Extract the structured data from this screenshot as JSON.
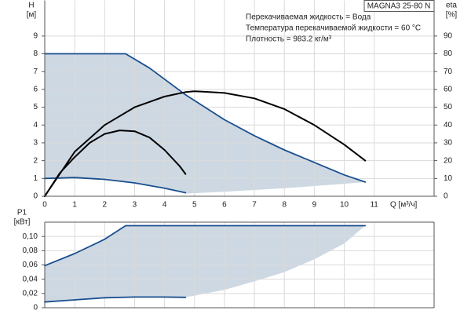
{
  "header": {
    "model": "MAGNA3 25-80 N",
    "notes": [
      "Перекачиваемая жидкость = Вода",
      "Температура перекачиваемой жидкости = 60 °C",
      "Плотность = 983.2 кг/м³"
    ]
  },
  "chart_data": [
    {
      "type": "line",
      "y_label": [
        "H",
        "[м]"
      ],
      "y2_label": [
        "eta",
        "[%]"
      ],
      "x_label": "Q [м³/ч]",
      "xlim": [
        0,
        13
      ],
      "xticks": [
        0,
        1,
        2,
        3,
        4,
        5,
        6,
        7,
        8,
        9,
        10,
        11
      ],
      "ylim": [
        0,
        11
      ],
      "yticks": [
        0,
        1,
        2,
        3,
        4,
        5,
        6,
        7,
        8,
        9
      ],
      "y2lim": [
        0,
        110
      ],
      "y2ticks": [
        0,
        10,
        20,
        30,
        40,
        50,
        60,
        70,
        80,
        90
      ],
      "grid": true,
      "area": {
        "color": "#cdd8e3",
        "x": [
          0,
          2.7,
          3.5,
          4.7,
          6,
          7,
          8,
          9,
          10,
          10.7,
          10,
          8,
          6,
          4.7,
          4,
          3,
          2,
          1,
          0
        ],
        "values": [
          8,
          8,
          7.2,
          5.7,
          4.3,
          3.4,
          2.6,
          1.9,
          1.2,
          0.8,
          0.7,
          0.45,
          0.25,
          0.15,
          0.45,
          0.75,
          0.95,
          1.05,
          1.0
        ]
      },
      "series": [
        {
          "color": "#1a4f8f",
          "x": [
            0,
            2.7,
            3.5,
            4.7,
            6,
            7,
            8,
            9,
            10,
            10.7
          ],
          "values": [
            8,
            8,
            7.2,
            5.7,
            4.3,
            3.4,
            2.6,
            1.9,
            1.2,
            0.8
          ]
        },
        {
          "color": "#1a4f8f",
          "x": [
            0,
            1,
            2,
            3,
            4,
            4.7
          ],
          "values": [
            1.0,
            1.05,
            0.95,
            0.75,
            0.45,
            0.2
          ]
        },
        {
          "color": "#000000",
          "axis": "y2",
          "x": [
            0,
            1,
            2,
            3,
            4,
            4.7,
            5,
            6,
            7,
            8,
            9,
            10,
            10.7
          ],
          "values": [
            0,
            25,
            40,
            50,
            56,
            58.5,
            59,
            58,
            55,
            49,
            40,
            29,
            20
          ]
        },
        {
          "color": "#000000",
          "axis": "y2",
          "x": [
            0,
            0.5,
            1,
            1.5,
            2,
            2.5,
            3,
            3.5,
            4,
            4.5,
            4.7
          ],
          "values": [
            0,
            13,
            22,
            30,
            35,
            37,
            36.5,
            33,
            26,
            17,
            12.5
          ]
        }
      ]
    },
    {
      "type": "line",
      "y_label": [
        "P1",
        "[кВт]"
      ],
      "xlim": [
        0,
        13
      ],
      "xticks": [
        0,
        1,
        2,
        3,
        4,
        5,
        6,
        7,
        8,
        9,
        10,
        11
      ],
      "ylim": [
        0,
        0.12
      ],
      "yticks": [
        0,
        {
          "value": 0.02,
          "label": "0,02"
        },
        {
          "value": 0.04,
          "label": "0,04"
        },
        {
          "value": 0.06,
          "label": "0,06"
        },
        {
          "value": 0.08,
          "label": "0,08"
        },
        {
          "value": 0.1,
          "label": "0,10"
        }
      ],
      "grid": true,
      "area": {
        "color": "#cdd8e3",
        "x": [
          0,
          1,
          2,
          2.7,
          10.7,
          10,
          9,
          8,
          7,
          6,
          4.7,
          4,
          3,
          2,
          1,
          0
        ],
        "values": [
          0.059,
          0.076,
          0.096,
          0.115,
          0.115,
          0.09,
          0.068,
          0.05,
          0.037,
          0.025,
          0.0145,
          0.015,
          0.015,
          0.014,
          0.011,
          0.008
        ]
      },
      "series": [
        {
          "color": "#1a4f8f",
          "x": [
            0,
            1,
            2,
            2.7,
            10.7
          ],
          "values": [
            0.059,
            0.076,
            0.096,
            0.115,
            0.115
          ]
        },
        {
          "color": "#1a4f8f",
          "x": [
            0,
            1,
            2,
            3,
            4,
            4.7
          ],
          "values": [
            0.008,
            0.011,
            0.014,
            0.015,
            0.015,
            0.0145
          ]
        }
      ]
    }
  ]
}
